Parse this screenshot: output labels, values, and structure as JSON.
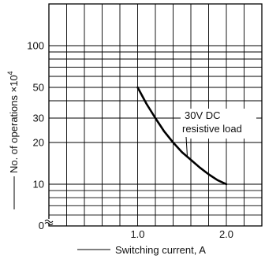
{
  "chart_data": {
    "type": "line",
    "xlabel": "Switching current, A",
    "ylabel": "No. of operations ×10",
    "ylabel_superscript": "4",
    "y_scale": "log",
    "grid": true,
    "xlim": [
      0,
      2.4
    ],
    "ylim": [
      5,
      200
    ],
    "x_ticks": [
      {
        "value": 1.0,
        "label": "1.0"
      },
      {
        "value": 2.0,
        "label": "2.0"
      }
    ],
    "y_ticks": [
      {
        "value": 10,
        "label": "10"
      },
      {
        "value": 20,
        "label": "20"
      },
      {
        "value": 30,
        "label": "30"
      },
      {
        "value": 50,
        "label": "50"
      },
      {
        "value": 100,
        "label": "100"
      }
    ],
    "y_origin_label": "0",
    "series": [
      {
        "name": "30V DC resistive load",
        "x": [
          1.0,
          1.1,
          1.2,
          1.3,
          1.4,
          1.5,
          1.6,
          1.7,
          1.8,
          1.9,
          2.0
        ],
        "y": [
          50,
          38,
          30,
          24,
          20,
          17,
          15,
          13.2,
          11.8,
          10.7,
          10
        ]
      }
    ],
    "annotations": [
      {
        "lines": [
          "30V DC",
          "resistive load"
        ]
      }
    ]
  }
}
